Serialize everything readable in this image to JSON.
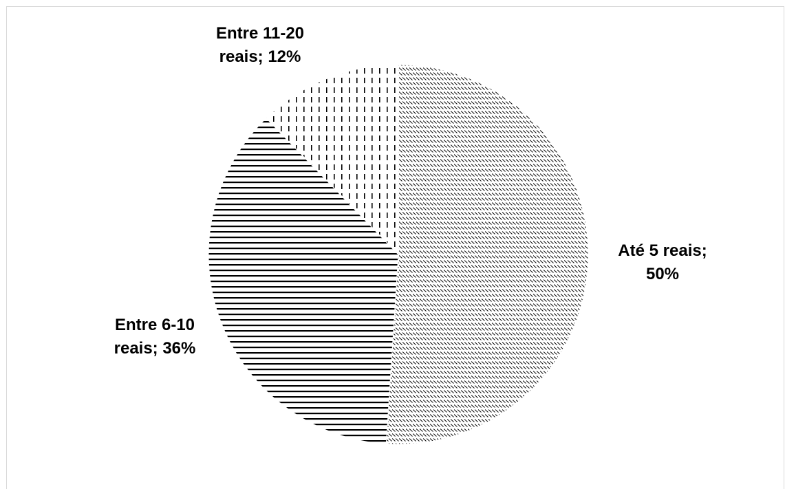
{
  "chart_data": {
    "type": "pie",
    "title": "",
    "slices": [
      {
        "category": "Até 5 reais",
        "value": 50,
        "label_lines": [
          "Até 5 reais;",
          "50%"
        ],
        "pattern": "diagonal-dashed"
      },
      {
        "category": "Entre 6-10 reais",
        "value": 36,
        "label_lines": [
          "Entre 6-10",
          "reais; 36%"
        ],
        "pattern": "horizontal-lines"
      },
      {
        "category": "Entre 11-20 reais",
        "value": 12,
        "label_lines": [
          "Entre 11-20",
          "reais; 12%"
        ],
        "pattern": "vertical-dashed"
      }
    ],
    "legend": "none",
    "colors": {
      "ink": "#000000",
      "background": "#ffffff",
      "border": "#d9d9d9"
    }
  }
}
